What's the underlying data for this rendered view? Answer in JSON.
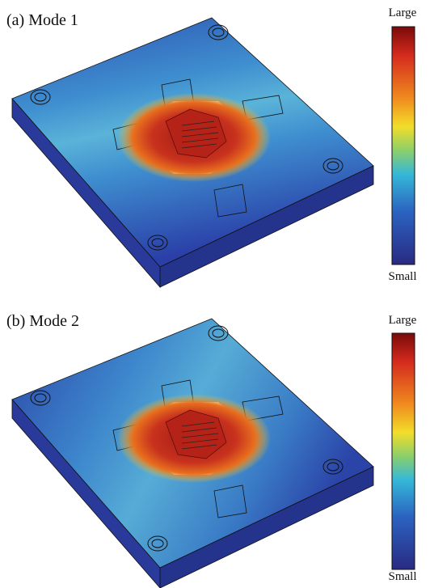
{
  "panels": [
    {
      "label": "(a) Mode 1",
      "colorbar": {
        "max_label": "Large",
        "min_label": "Small"
      }
    },
    {
      "label": "(b) Mode 2",
      "colorbar": {
        "max_label": "Large",
        "min_label": "Small"
      }
    }
  ]
}
